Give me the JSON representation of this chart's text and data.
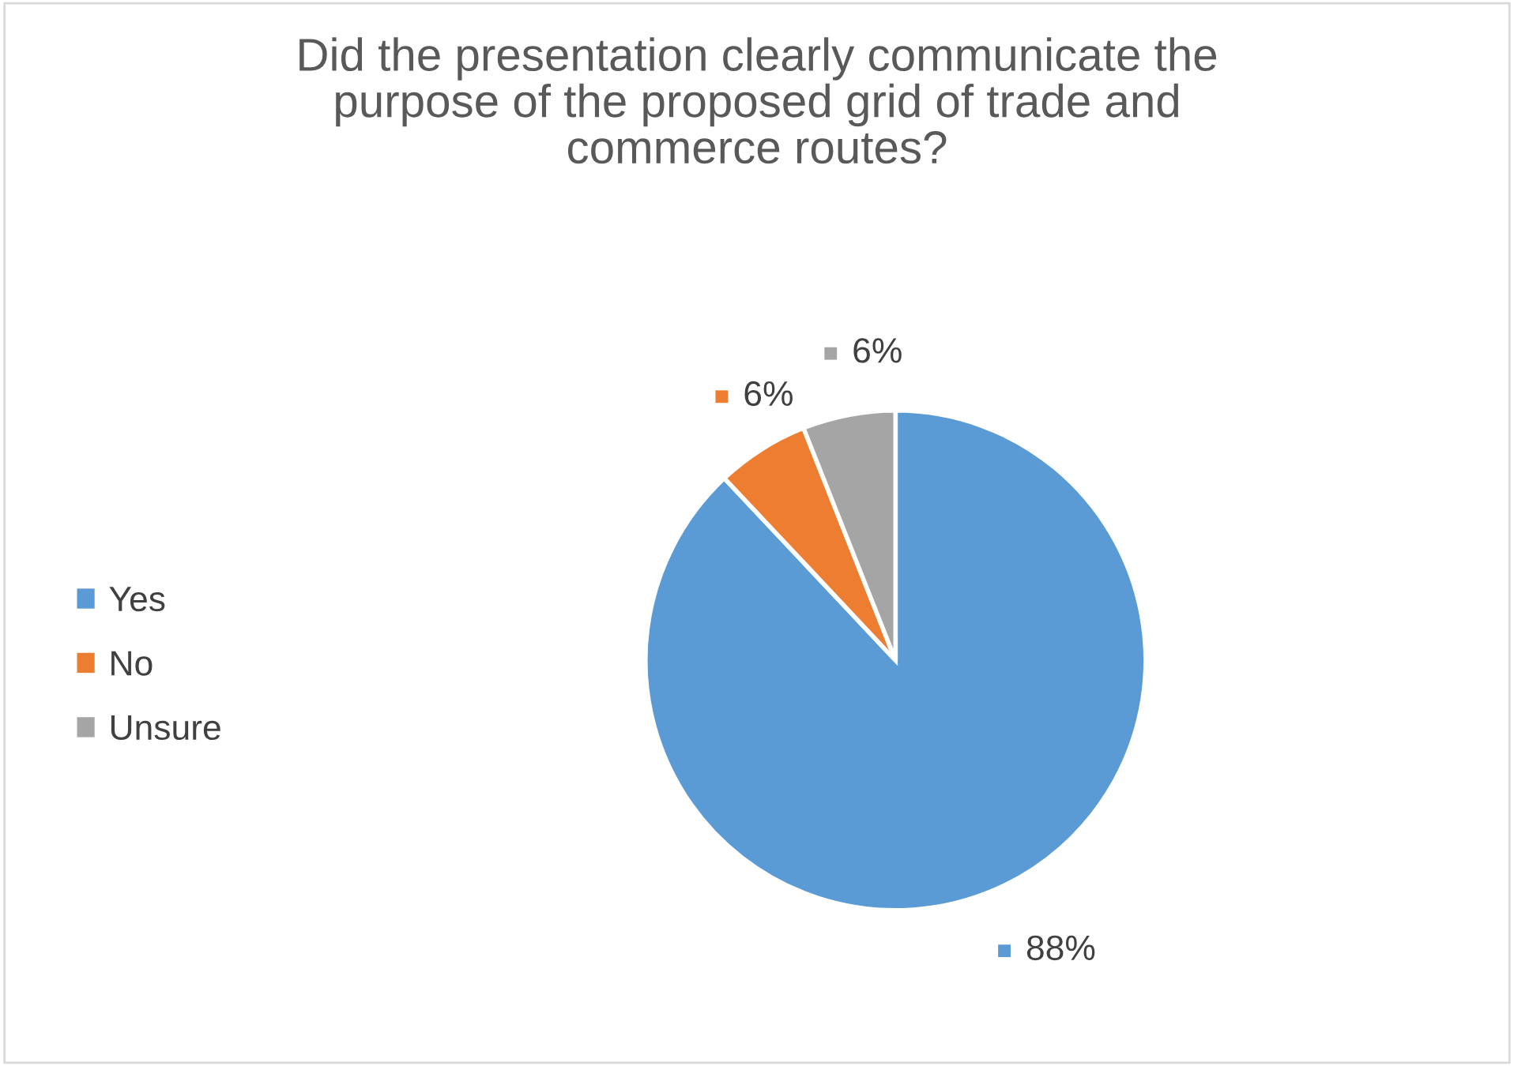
{
  "chart_data": {
    "type": "pie",
    "title": "Did the presentation clearly communicate the\npurpose of the proposed grid of trade and\ncommerce routes?",
    "categories": [
      "Yes",
      "No",
      "Unsure"
    ],
    "values": [
      88,
      6,
      6
    ],
    "value_labels": [
      "88%",
      "6%",
      "6%"
    ],
    "colors": [
      "#5b9bd5",
      "#ed7d31",
      "#a5a5a5"
    ],
    "legend": "left"
  }
}
